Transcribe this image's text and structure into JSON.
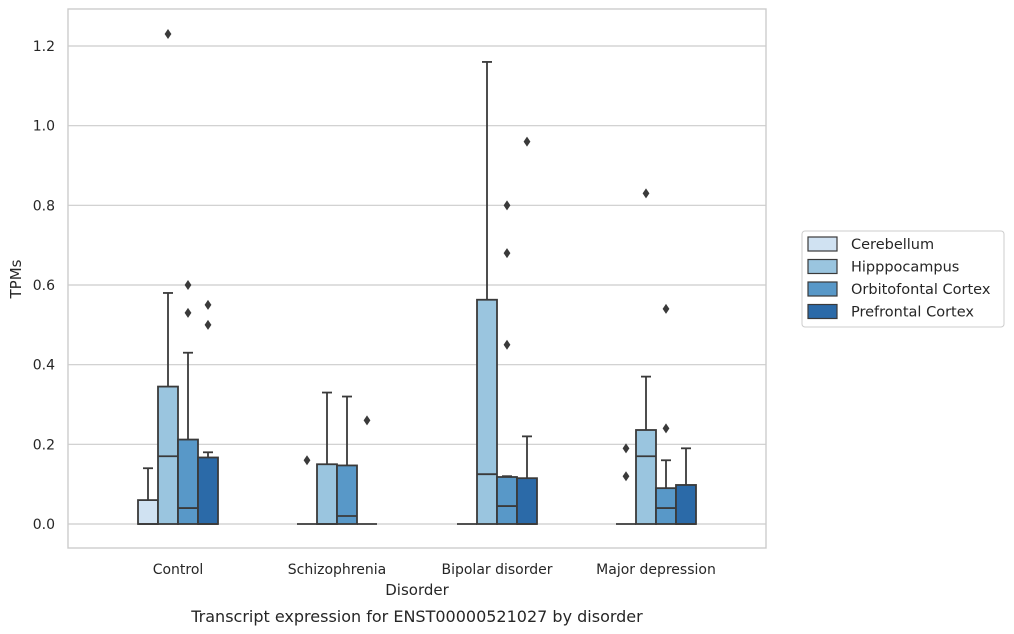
{
  "chart_data": {
    "type": "box",
    "xlabel": "Disorder",
    "ylabel": "TPMs",
    "caption": "Transcript expression for ENST00000521027 by disorder",
    "ylim": [
      -0.06,
      1.29
    ],
    "yticks": [
      "0.0",
      "0.2",
      "0.4",
      "0.6",
      "0.8",
      "1.0",
      "1.2"
    ],
    "ytick_values": [
      0.0,
      0.2,
      0.4,
      0.6,
      0.8,
      1.0,
      1.2
    ],
    "grid": "horizontal",
    "legend_placement": "center-right",
    "categories": [
      "Control",
      "Schizophrenia",
      "Bipolar disorder",
      "Major depression"
    ],
    "series": [
      {
        "name": "Cerebellum",
        "color": "#d0e2f2",
        "boxes": [
          {
            "q1": 0.0,
            "median": 0.0,
            "q3": 0.06,
            "whisker_low": 0.0,
            "whisker_high": 0.14,
            "outliers": []
          },
          {
            "q1": 0.0,
            "median": 0.0,
            "q3": 0.0,
            "whisker_low": 0.0,
            "whisker_high": 0.0,
            "outliers": [
              0.16
            ]
          },
          {
            "q1": 0.0,
            "median": 0.0,
            "q3": 0.0,
            "whisker_low": 0.0,
            "whisker_high": 0.0,
            "outliers": []
          },
          {
            "q1": 0.0,
            "median": 0.0,
            "q3": 0.0,
            "whisker_low": 0.0,
            "whisker_high": 0.0,
            "outliers": [
              0.12,
              0.19
            ]
          }
        ]
      },
      {
        "name": "Hipppocampus",
        "color": "#9ac5df",
        "boxes": [
          {
            "q1": 0.0,
            "median": 0.17,
            "q3": 0.345,
            "whisker_low": 0.0,
            "whisker_high": 0.58,
            "outliers": [
              1.23
            ]
          },
          {
            "q1": 0.0,
            "median": 0.0,
            "q3": 0.15,
            "whisker_low": 0.0,
            "whisker_high": 0.33,
            "outliers": []
          },
          {
            "q1": 0.0,
            "median": 0.125,
            "q3": 0.563,
            "whisker_low": 0.0,
            "whisker_high": 1.16,
            "outliers": []
          },
          {
            "q1": 0.0,
            "median": 0.17,
            "q3": 0.236,
            "whisker_low": 0.0,
            "whisker_high": 0.37,
            "outliers": [
              0.83
            ]
          }
        ]
      },
      {
        "name": "Orbitofontal Cortex",
        "color": "#5898c8",
        "boxes": [
          {
            "q1": 0.0,
            "median": 0.04,
            "q3": 0.212,
            "whisker_low": 0.0,
            "whisker_high": 0.43,
            "outliers": [
              0.53,
              0.6
            ]
          },
          {
            "q1": 0.0,
            "median": 0.02,
            "q3": 0.147,
            "whisker_low": 0.0,
            "whisker_high": 0.32,
            "outliers": []
          },
          {
            "q1": 0.0,
            "median": 0.045,
            "q3": 0.118,
            "whisker_low": 0.0,
            "whisker_high": 0.12,
            "outliers": [
              0.45,
              0.68,
              0.8
            ]
          },
          {
            "q1": 0.0,
            "median": 0.04,
            "q3": 0.09,
            "whisker_low": 0.0,
            "whisker_high": 0.16,
            "outliers": [
              0.24,
              0.54
            ]
          }
        ]
      },
      {
        "name": "Prefrontal Cortex",
        "color": "#2b6aa8",
        "boxes": [
          {
            "q1": 0.0,
            "median": 0.0,
            "q3": 0.167,
            "whisker_low": 0.0,
            "whisker_high": 0.18,
            "outliers": [
              0.5,
              0.55
            ]
          },
          {
            "q1": 0.0,
            "median": 0.0,
            "q3": 0.0,
            "whisker_low": 0.0,
            "whisker_high": 0.0,
            "outliers": [
              0.26
            ]
          },
          {
            "q1": 0.0,
            "median": 0.0,
            "q3": 0.115,
            "whisker_low": 0.0,
            "whisker_high": 0.22,
            "outliers": [
              0.96
            ]
          },
          {
            "q1": 0.0,
            "median": 0.0,
            "q3": 0.098,
            "whisker_low": 0.0,
            "whisker_high": 0.19,
            "outliers": []
          }
        ]
      }
    ]
  }
}
